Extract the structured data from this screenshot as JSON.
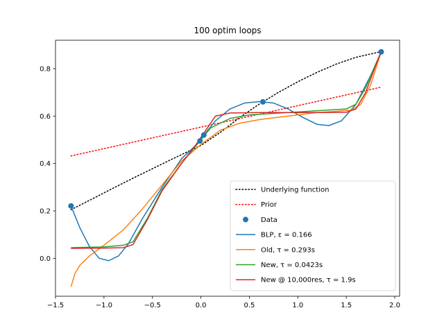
{
  "chart_data": {
    "type": "line",
    "title": "100 optim loops",
    "xlabel": "",
    "ylabel": "",
    "xlim": [
      -1.5,
      2.05
    ],
    "ylim": [
      -0.16,
      0.92
    ],
    "xticks": [
      {
        "value": -1.5,
        "label": "−1.5"
      },
      {
        "value": -1.0,
        "label": "−1.0"
      },
      {
        "value": -0.5,
        "label": "−0.5"
      },
      {
        "value": 0.0,
        "label": "0.0"
      },
      {
        "value": 0.5,
        "label": "0.5"
      },
      {
        "value": 1.0,
        "label": "1.0"
      },
      {
        "value": 1.5,
        "label": "1.5"
      },
      {
        "value": 2.0,
        "label": "2.0"
      }
    ],
    "yticks": [
      {
        "value": 0.0,
        "label": "0.0"
      },
      {
        "value": 0.2,
        "label": "0.2"
      },
      {
        "value": 0.4,
        "label": "0.4"
      },
      {
        "value": 0.6,
        "label": "0.6"
      },
      {
        "value": 0.8,
        "label": "0.8"
      }
    ],
    "grid": false,
    "legend_position": "lower-right",
    "series": [
      {
        "name": "Underlying function",
        "kind": "line",
        "style": "dotted",
        "color": "#000000",
        "points": [
          [
            -1.34,
            0.205
          ],
          [
            -1.1,
            0.255
          ],
          [
            -0.9,
            0.297
          ],
          [
            -0.7,
            0.338
          ],
          [
            -0.5,
            0.378
          ],
          [
            -0.3,
            0.418
          ],
          [
            -0.1,
            0.457
          ],
          [
            0.0,
            0.476
          ],
          [
            0.2,
            0.531
          ],
          [
            0.4,
            0.594
          ],
          [
            0.6,
            0.65
          ],
          [
            0.8,
            0.7
          ],
          [
            1.0,
            0.745
          ],
          [
            1.2,
            0.785
          ],
          [
            1.4,
            0.82
          ],
          [
            1.6,
            0.848
          ],
          [
            1.86,
            0.872
          ]
        ]
      },
      {
        "name": "Prior",
        "kind": "line",
        "style": "dotted",
        "color": "#ff0000",
        "points": [
          [
            -1.34,
            0.432
          ],
          [
            1.86,
            0.722
          ]
        ]
      },
      {
        "name": "Data",
        "kind": "scatter",
        "color": "#1f77b4",
        "points": [
          [
            -1.34,
            0.221
          ],
          [
            -0.01,
            0.495
          ],
          [
            0.03,
            0.52
          ],
          [
            0.64,
            0.66
          ],
          [
            1.86,
            0.871
          ]
        ]
      },
      {
        "name": "BLP, ε = 0.166",
        "kind": "line",
        "style": "solid",
        "color": "#1f77b4",
        "points": [
          [
            -1.34,
            0.221
          ],
          [
            -1.25,
            0.13
          ],
          [
            -1.15,
            0.05
          ],
          [
            -1.05,
            0.0
          ],
          [
            -0.95,
            -0.01
          ],
          [
            -0.85,
            0.01
          ],
          [
            -0.75,
            0.06
          ],
          [
            -0.6,
            0.17
          ],
          [
            -0.4,
            0.3
          ],
          [
            -0.2,
            0.42
          ],
          [
            -0.05,
            0.478
          ],
          [
            0.03,
            0.52
          ],
          [
            0.15,
            0.58
          ],
          [
            0.3,
            0.63
          ],
          [
            0.45,
            0.655
          ],
          [
            0.6,
            0.661
          ],
          [
            0.75,
            0.655
          ],
          [
            0.9,
            0.63
          ],
          [
            1.05,
            0.595
          ],
          [
            1.2,
            0.565
          ],
          [
            1.32,
            0.56
          ],
          [
            1.45,
            0.58
          ],
          [
            1.6,
            0.65
          ],
          [
            1.75,
            0.77
          ],
          [
            1.86,
            0.871
          ]
        ]
      },
      {
        "name": "Old, τ = 0.293s",
        "kind": "line",
        "style": "solid",
        "color": "#ff7f0e",
        "points": [
          [
            -1.34,
            -0.12
          ],
          [
            -1.3,
            -0.065
          ],
          [
            -1.25,
            -0.03
          ],
          [
            -1.15,
            0.01
          ],
          [
            -1.0,
            0.055
          ],
          [
            -0.8,
            0.12
          ],
          [
            -0.6,
            0.21
          ],
          [
            -0.4,
            0.31
          ],
          [
            -0.2,
            0.41
          ],
          [
            0.0,
            0.48
          ],
          [
            0.2,
            0.54
          ],
          [
            0.4,
            0.57
          ],
          [
            0.6,
            0.585
          ],
          [
            0.8,
            0.595
          ],
          [
            1.0,
            0.605
          ],
          [
            1.2,
            0.615
          ],
          [
            1.4,
            0.62
          ],
          [
            1.55,
            0.625
          ],
          [
            1.65,
            0.65
          ],
          [
            1.75,
            0.73
          ],
          [
            1.86,
            0.871
          ]
        ]
      },
      {
        "name": "New, τ = 0.0423s",
        "kind": "line",
        "style": "solid",
        "color": "#2ca02c",
        "points": [
          [
            -1.34,
            0.045
          ],
          [
            -1.0,
            0.048
          ],
          [
            -0.8,
            0.055
          ],
          [
            -0.7,
            0.07
          ],
          [
            -0.55,
            0.17
          ],
          [
            -0.4,
            0.29
          ],
          [
            -0.2,
            0.4
          ],
          [
            -0.05,
            0.475
          ],
          [
            0.1,
            0.55
          ],
          [
            0.3,
            0.59
          ],
          [
            0.5,
            0.605
          ],
          [
            0.7,
            0.61
          ],
          [
            0.9,
            0.615
          ],
          [
            1.1,
            0.62
          ],
          [
            1.3,
            0.625
          ],
          [
            1.5,
            0.63
          ],
          [
            1.6,
            0.65
          ],
          [
            1.7,
            0.72
          ],
          [
            1.86,
            0.871
          ]
        ]
      },
      {
        "name": "New @ 10,000res, τ = 1.9s",
        "kind": "line",
        "style": "solid",
        "color": "#d62728",
        "points": [
          [
            -1.34,
            0.042
          ],
          [
            -1.0,
            0.043
          ],
          [
            -0.8,
            0.045
          ],
          [
            -0.7,
            0.058
          ],
          [
            -0.55,
            0.165
          ],
          [
            -0.4,
            0.285
          ],
          [
            -0.2,
            0.4
          ],
          [
            -0.05,
            0.48
          ],
          [
            0.05,
            0.54
          ],
          [
            0.15,
            0.6
          ],
          [
            0.3,
            0.613
          ],
          [
            0.6,
            0.615
          ],
          [
            0.9,
            0.615
          ],
          [
            1.2,
            0.615
          ],
          [
            1.5,
            0.616
          ],
          [
            1.6,
            0.63
          ],
          [
            1.7,
            0.7
          ],
          [
            1.8,
            0.81
          ],
          [
            1.86,
            0.871
          ]
        ]
      }
    ]
  }
}
